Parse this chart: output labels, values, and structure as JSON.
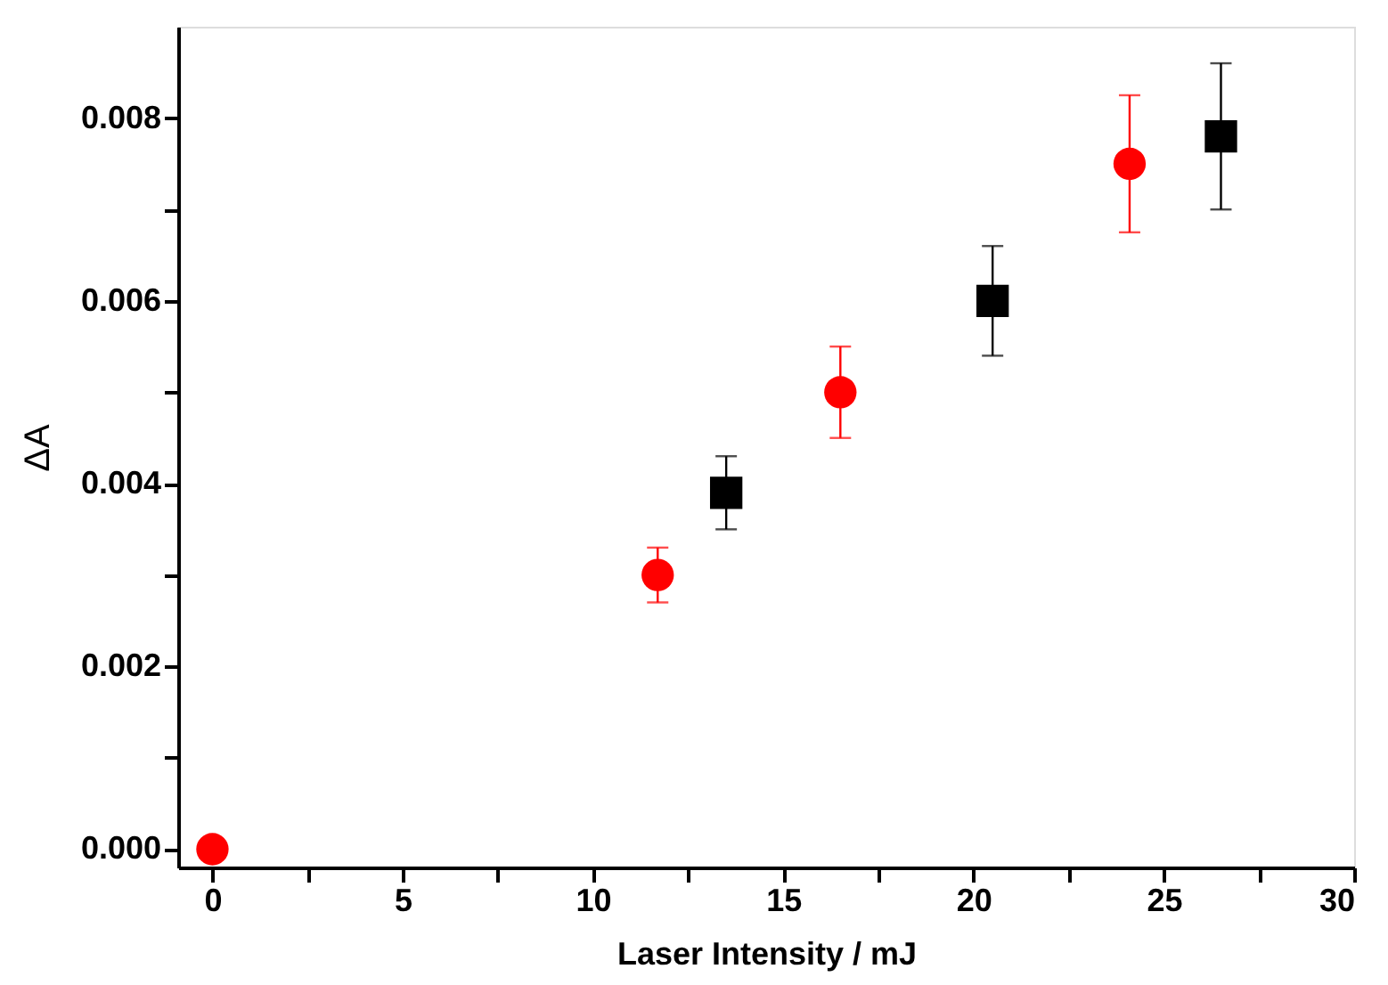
{
  "chart_data": {
    "type": "scatter",
    "xlabel": "Laser Intensity / mJ",
    "ylabel": "ΔA",
    "xlim": [
      -0.9,
      30
    ],
    "ylim": [
      -0.0002,
      0.009
    ],
    "xticks": [
      0,
      {
        "value": 2.5,
        "label": null
      },
      5,
      {
        "value": 7.5,
        "label": null
      },
      10,
      {
        "value": 12.5,
        "label": null
      },
      15,
      {
        "value": 17.5,
        "label": null
      },
      20,
      {
        "value": 22.5,
        "label": null
      },
      25,
      {
        "value": 27.5,
        "label": null
      },
      30
    ],
    "yticks": [
      {
        "value": 0,
        "label": "0.000"
      },
      {
        "value": 0.001,
        "label": null
      },
      {
        "value": 0.002,
        "label": "0.002"
      },
      {
        "value": 0.003,
        "label": null
      },
      {
        "value": 0.004,
        "label": "0.004"
      },
      {
        "value": 0.005,
        "label": null
      },
      {
        "value": 0.006,
        "label": "0.006"
      },
      {
        "value": 0.007,
        "label": null
      },
      {
        "value": 0.008,
        "label": "0.008"
      }
    ],
    "grid": false,
    "series": [
      {
        "color": "#ff0000",
        "marker": "circle",
        "x": [
          0,
          11.7,
          16.5,
          24.1
        ],
        "values": [
          0,
          0.003,
          0.005,
          0.0075
        ],
        "errors": [
          null,
          0.0003,
          0.0005,
          0.00075
        ]
      },
      {
        "color": "#000000",
        "marker": "square",
        "x": [
          13.5,
          20.5,
          26.5
        ],
        "values": [
          0.0039,
          0.006,
          0.0078
        ],
        "errors": [
          0.0004,
          0.0006,
          0.0008
        ]
      }
    ]
  }
}
